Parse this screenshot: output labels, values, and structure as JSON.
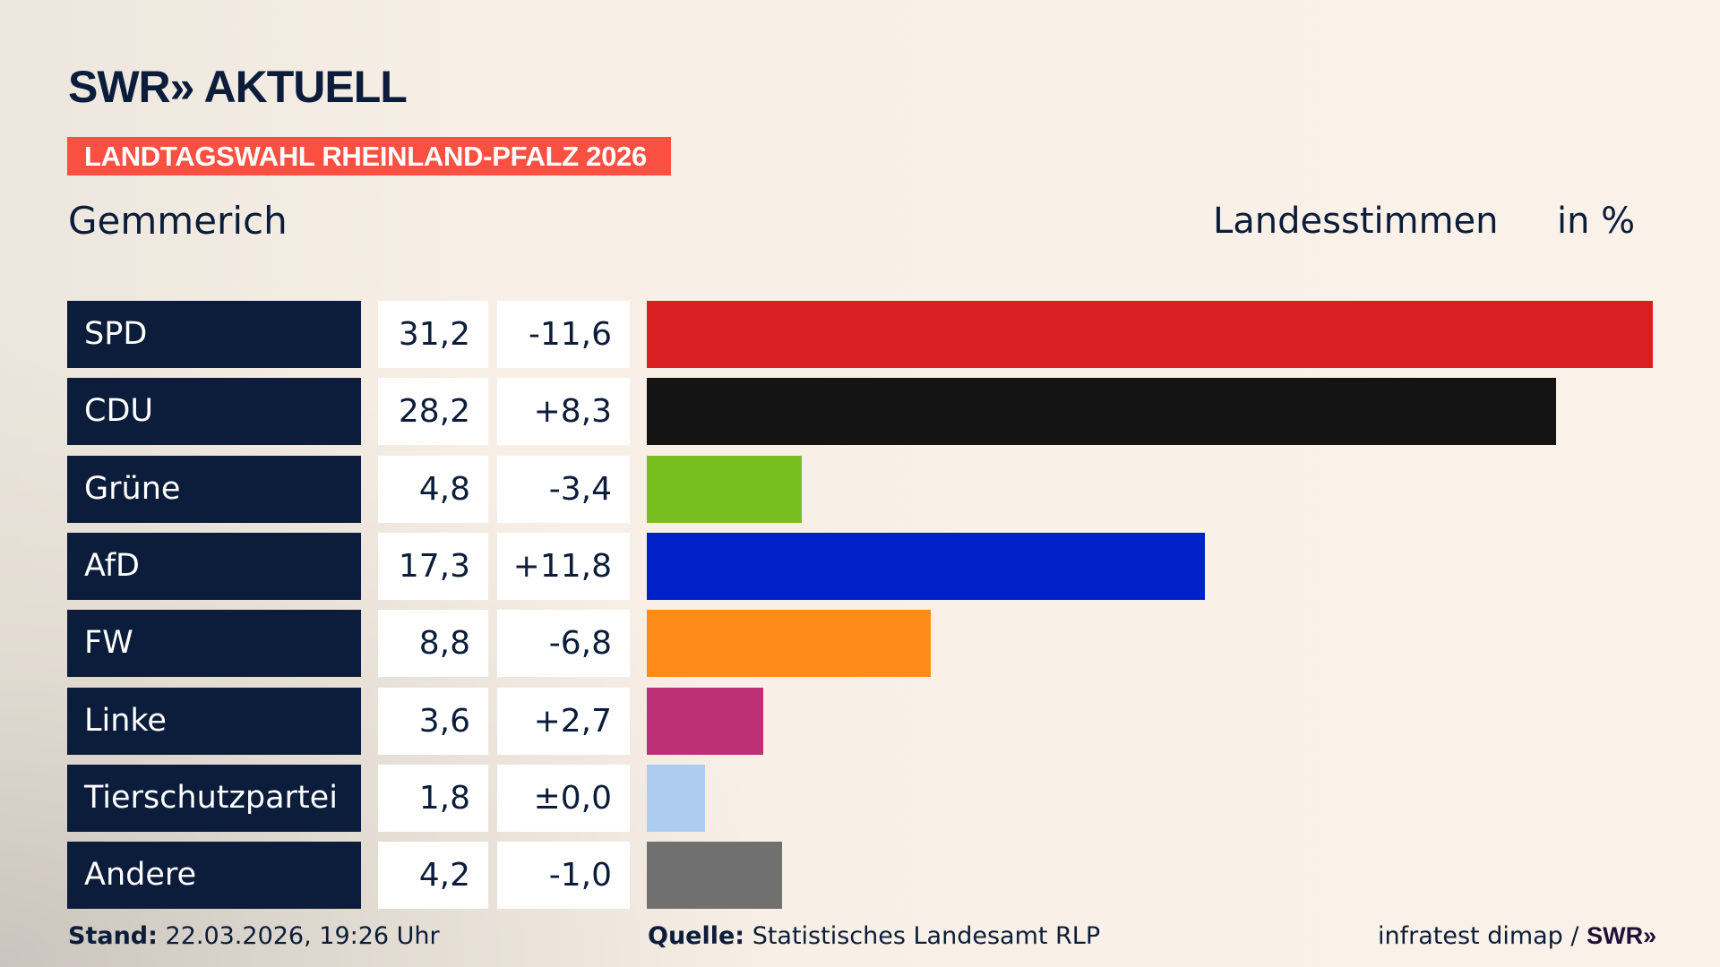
{
  "header": {
    "logo": "SWR» AKTUELL",
    "banner": "LANDTAGSWAHL RHEINLAND-PFALZ 2026",
    "region": "Gemmerich",
    "vote_type": "Landesstimmen",
    "unit": "in %"
  },
  "chart_data": {
    "type": "bar",
    "orientation": "horizontal",
    "categories": [
      "SPD",
      "CDU",
      "Grüne",
      "AfD",
      "FW",
      "Linke",
      "Tierschutzpartei",
      "Andere"
    ],
    "values": [
      31.2,
      28.2,
      4.8,
      17.3,
      8.8,
      3.6,
      1.8,
      4.2
    ],
    "value_labels": [
      "31,2",
      "28,2",
      "4,8",
      "17,3",
      "8,8",
      "3,6",
      "1,8",
      "4,2"
    ],
    "change_labels": [
      "-11,6",
      "+8,3",
      "-3,4",
      "+11,8",
      "-6,8",
      "+2,7",
      "±0,0",
      "-1,0"
    ],
    "changes": [
      -11.6,
      8.3,
      -3.4,
      11.8,
      -6.8,
      2.7,
      0.0,
      -1.0
    ],
    "colors": [
      "#d81f21",
      "#141414",
      "#78be1e",
      "#0021c8",
      "#ff8c19",
      "#be3075",
      "#aecbf0",
      "#707070"
    ],
    "grid": false
  },
  "footer": {
    "stand_label": "Stand:",
    "stand_value": "22.03.2026, 19:26 Uhr",
    "source_label": "Quelle:",
    "source_value": "Statistisches Landesamt RLP",
    "credit": "infratest dimap /",
    "credit_logo": "SWR»"
  }
}
